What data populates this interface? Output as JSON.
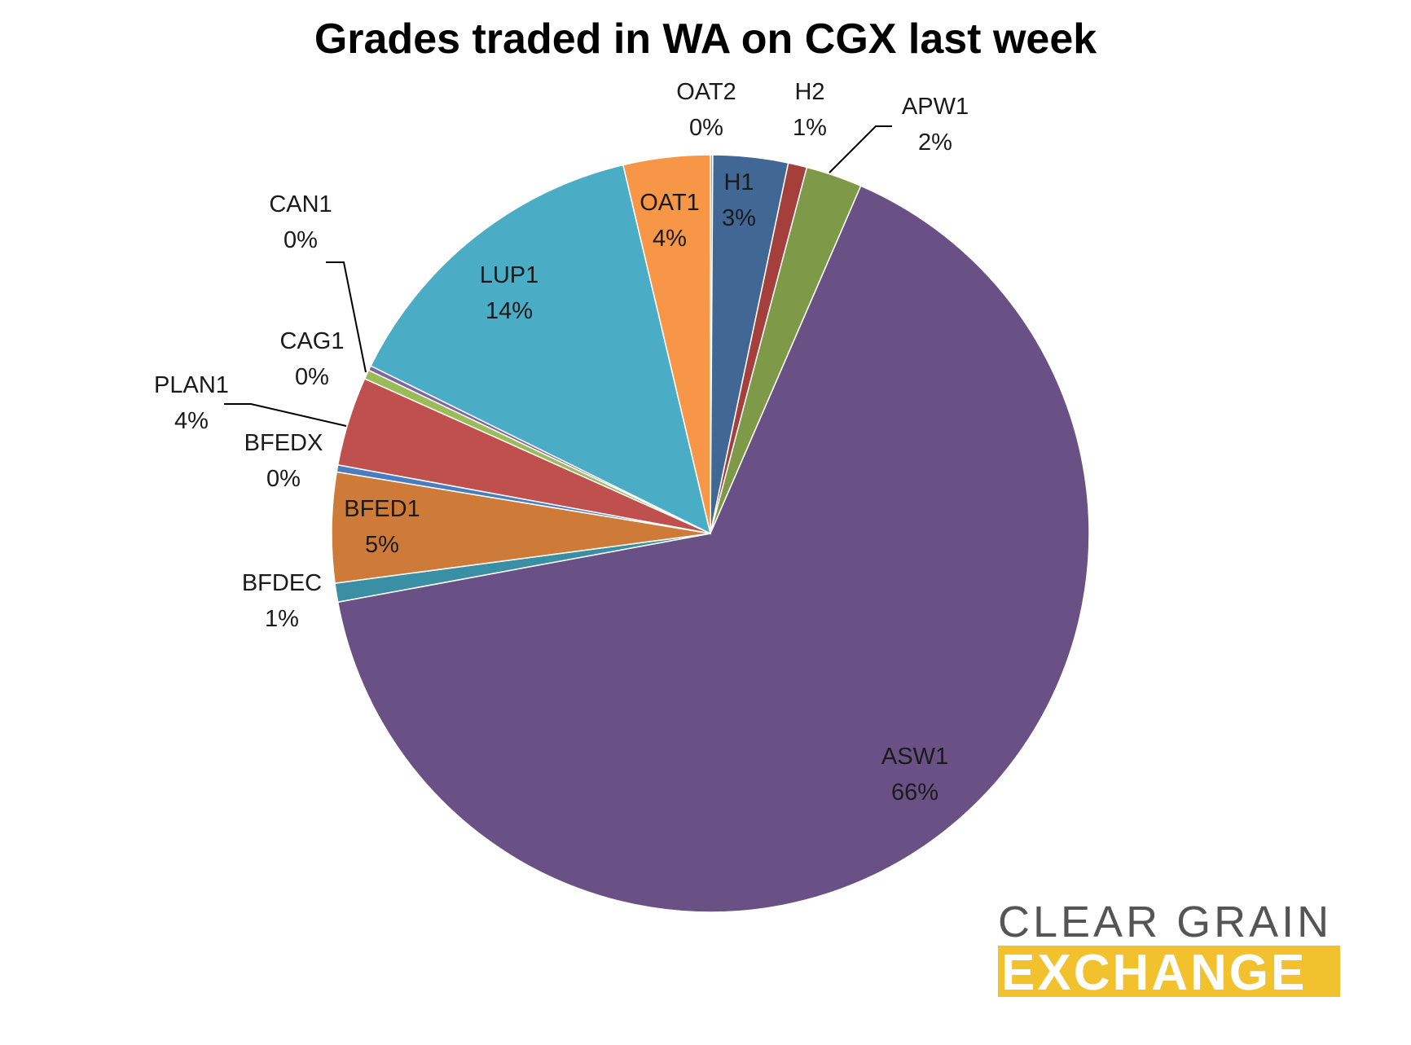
{
  "chart_data": {
    "type": "pie",
    "title": "Grades traded in WA on CGX last week",
    "start_angle_deg": 0,
    "direction": "clockwise",
    "slices": [
      {
        "name": "OAT2",
        "label_pct": "0%",
        "value": 0.1,
        "color": "#9aa0a6"
      },
      {
        "name": "H1",
        "label_pct": "3%",
        "value": 3.2,
        "color": "#416795"
      },
      {
        "name": "H2",
        "label_pct": "1%",
        "value": 0.8,
        "color": "#a43f3c"
      },
      {
        "name": "APW1",
        "label_pct": "2%",
        "value": 2.4,
        "color": "#7e9a48"
      },
      {
        "name": "ASW1",
        "label_pct": "66%",
        "value": 65.6,
        "color": "#6a5185"
      },
      {
        "name": "BFDEC",
        "label_pct": "1%",
        "value": 0.8,
        "color": "#3a8fa5"
      },
      {
        "name": "BFED1",
        "label_pct": "5%",
        "value": 4.7,
        "color": "#ce7b39"
      },
      {
        "name": "BFEDX",
        "label_pct": "0%",
        "value": 0.3,
        "color": "#4a7cc0"
      },
      {
        "name": "PLAN1",
        "label_pct": "4%",
        "value": 3.8,
        "color": "#c0504d"
      },
      {
        "name": "CAG1",
        "label_pct": "0%",
        "value": 0.4,
        "color": "#9bbb59"
      },
      {
        "name": "CAN1",
        "label_pct": "0%",
        "value": 0.2,
        "color": "#8064a2"
      },
      {
        "name": "LUP1",
        "label_pct": "14%",
        "value": 14.0,
        "color": "#4bacc6"
      },
      {
        "name": "OAT1",
        "label_pct": "4%",
        "value": 3.7,
        "color": "#f79646"
      }
    ]
  },
  "logo": {
    "line1": "CLEAR GRAIN",
    "line2": "EXCHANGE",
    "accent_color": "#f2c12e",
    "text_color": "#555555"
  }
}
